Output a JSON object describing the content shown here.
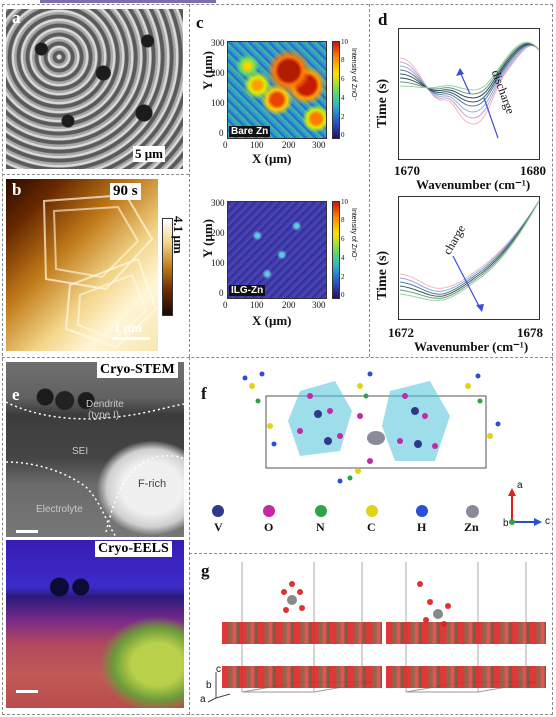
{
  "panels": {
    "a": {
      "label": "a",
      "scale": "5 μm"
    },
    "b": {
      "label": "b",
      "time": "90 s",
      "height": "4.1 μm",
      "scale": "1 μm"
    },
    "c": {
      "label": "c",
      "top": {
        "ylabel": "Y (μm)",
        "xlabel": "X (μm)",
        "yticks": [
          "300",
          "200",
          "100",
          "0"
        ],
        "xticks": [
          "0",
          "100",
          "200",
          "300"
        ],
        "cbar_ticks": [
          "10",
          "8",
          "6",
          "4",
          "2",
          "0"
        ],
        "cbar_label": "Intensity of ZnO⁻",
        "tag": "Bare Zn"
      },
      "bottom": {
        "ylabel": "Y (μm)",
        "xlabel": "X (μm)",
        "yticks": [
          "300",
          "200",
          "100",
          "0"
        ],
        "xticks": [
          "0",
          "100",
          "200",
          "300"
        ],
        "cbar_ticks": [
          "10",
          "8",
          "6",
          "4",
          "2",
          "0"
        ],
        "cbar_label": "Intensity of ZnO⁻",
        "tag": "ILG-Zn"
      }
    },
    "d": {
      "label": "d",
      "top": {
        "ylabel": "Time (s)",
        "xlabel": "Wavenumber (cm⁻¹)",
        "xticks": [
          "1670",
          "1680"
        ],
        "annotation": "discharge"
      },
      "bottom": {
        "ylabel": "Time (s)",
        "xlabel": "Wavenumber (cm⁻¹)",
        "xticks": [
          "1672",
          "1678"
        ],
        "annotation": "charge"
      }
    },
    "e": {
      "label": "e",
      "stem_title": "Cryo-STEM",
      "eels_title": "Cryo-EELS",
      "regions": {
        "dendrite": "Dendrite",
        "dendrite_type": "(type I)",
        "sei": "SEI",
        "frich": "F-rich",
        "electrolyte": "Electrolyte"
      }
    },
    "f": {
      "label": "f",
      "legend": [
        {
          "symbol": "V",
          "color": "#2d3a8c"
        },
        {
          "symbol": "O",
          "color": "#c02aa6"
        },
        {
          "symbol": "N",
          "color": "#2fa34a"
        },
        {
          "symbol": "C",
          "color": "#e3d21a"
        },
        {
          "symbol": "H",
          "color": "#2a4fd6"
        },
        {
          "symbol": "Zn",
          "color": "#8a8a9a"
        }
      ],
      "axes": {
        "a": "a",
        "b": "b",
        "c": "c"
      }
    },
    "g": {
      "label": "g",
      "axes": {
        "a": "a",
        "b": "b",
        "c": "c"
      }
    }
  }
}
